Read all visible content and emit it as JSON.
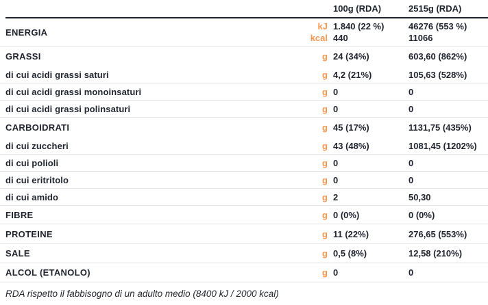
{
  "header": {
    "col1": "100g (RDA)",
    "col2": "2515g (RDA)"
  },
  "energy": {
    "label": "ENERGIA",
    "units": [
      "kJ",
      "kcal"
    ],
    "col1": [
      "1.840 (22 %)",
      "440"
    ],
    "col2": [
      "46276 (553 %)",
      "11066"
    ]
  },
  "rows": [
    {
      "label": "GRASSI",
      "unit": "g",
      "col1": "24 (34%)",
      "col2": "603,60 (862%)"
    },
    {
      "label": "di cui acidi grassi saturi",
      "unit": "g",
      "col1": "4,2 (21%)",
      "col2": "105,63 (528%)"
    },
    {
      "label": "di cui acidi grassi monoinsaturi",
      "unit": "g",
      "col1": "0",
      "col2": "0"
    },
    {
      "label": "di cui acidi grassi polinsaturi",
      "unit": "g",
      "col1": "0",
      "col2": "0"
    },
    {
      "label": "CARBOIDRATI",
      "unit": "g",
      "col1": "45 (17%)",
      "col2": "1131,75 (435%)"
    },
    {
      "label": "di cui zuccheri",
      "unit": "g",
      "col1": "43 (48%)",
      "col2": "1081,45 (1202%)"
    },
    {
      "label": "di cui polioli",
      "unit": "g",
      "col1": "0",
      "col2": "0"
    },
    {
      "label": "di cui eritritolo",
      "unit": "g",
      "col1": "0",
      "col2": "0"
    },
    {
      "label": "di cui amido",
      "unit": "g",
      "col1": "2",
      "col2": "50,30"
    },
    {
      "label": "FIBRE",
      "unit": "g",
      "col1": "0 (0%)",
      "col2": "0 (0%)"
    },
    {
      "label": "PROTEINE",
      "unit": "g",
      "col1": "11 (22%)",
      "col2": "276,65 (553%)"
    },
    {
      "label": "SALE",
      "unit": "g",
      "col1": "0,5 (8%)",
      "col2": "12,58 (210%)"
    },
    {
      "label": "ALCOL (ETANOLO)",
      "unit": "g",
      "col1": "0",
      "col2": "0"
    }
  ],
  "footnote": "RDA rispetto il fabbisogno di un adulto medio (8400 kJ / 2000 kcal)",
  "colors": {
    "accent": "#F7964E",
    "text": "#1F232E",
    "heavy_rule": "#1C2330",
    "separator": "#E2E2E2",
    "background": "#FFFFFF"
  }
}
